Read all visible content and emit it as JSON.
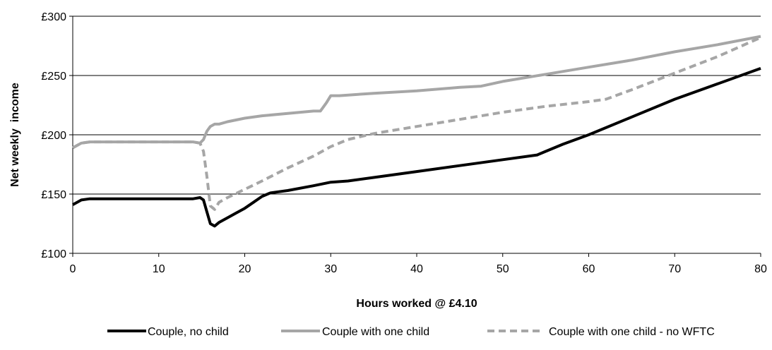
{
  "chart_data": {
    "type": "line",
    "title": "",
    "xlabel": "Hours worked @ £4.10",
    "ylabel": "Net weekly  income",
    "xlim": [
      0,
      80
    ],
    "ylim": [
      100,
      300
    ],
    "x_ticks": [
      0,
      10,
      20,
      30,
      40,
      50,
      60,
      70,
      80
    ],
    "x_tick_labels": [
      "0",
      "10",
      "20",
      "30",
      "40",
      "50",
      "60",
      "70",
      "80"
    ],
    "y_ticks": [
      100,
      150,
      200,
      250,
      300
    ],
    "y_tick_labels": [
      "£100",
      "£150",
      "£200",
      "£250",
      "£300"
    ],
    "grid": "horizontal",
    "legend_position": "bottom",
    "series": [
      {
        "name": "Couple, no child",
        "color": "#000000",
        "style": "solid",
        "points": [
          [
            0,
            141
          ],
          [
            0.5,
            143
          ],
          [
            1,
            145
          ],
          [
            2,
            146
          ],
          [
            5,
            146
          ],
          [
            10,
            146
          ],
          [
            14,
            146
          ],
          [
            14.8,
            147
          ],
          [
            15.2,
            145
          ],
          [
            15.6,
            135
          ],
          [
            16,
            125
          ],
          [
            16.5,
            123
          ],
          [
            17,
            126
          ],
          [
            18,
            130
          ],
          [
            19,
            134
          ],
          [
            20,
            138
          ],
          [
            21,
            143
          ],
          [
            22,
            148
          ],
          [
            23,
            151
          ],
          [
            25,
            153
          ],
          [
            28,
            157
          ],
          [
            30,
            160
          ],
          [
            32,
            161
          ],
          [
            35,
            164
          ],
          [
            40,
            169
          ],
          [
            45,
            174
          ],
          [
            50,
            179
          ],
          [
            54,
            183
          ],
          [
            55,
            186
          ],
          [
            57,
            192
          ],
          [
            60,
            200
          ],
          [
            65,
            215
          ],
          [
            70,
            230
          ],
          [
            75,
            243
          ],
          [
            80,
            256
          ]
        ]
      },
      {
        "name": "Couple with one child",
        "color": "#a6a6a6",
        "style": "solid",
        "points": [
          [
            0,
            189
          ],
          [
            0.5,
            191
          ],
          [
            1,
            193
          ],
          [
            2,
            194
          ],
          [
            5,
            194
          ],
          [
            10,
            194
          ],
          [
            14,
            194
          ],
          [
            14.8,
            193
          ],
          [
            15.2,
            196
          ],
          [
            15.6,
            203
          ],
          [
            16,
            207
          ],
          [
            16.5,
            209
          ],
          [
            17,
            209
          ],
          [
            18,
            211
          ],
          [
            20,
            214
          ],
          [
            22,
            216
          ],
          [
            25,
            218
          ],
          [
            28,
            220
          ],
          [
            28.8,
            220
          ],
          [
            29.5,
            227
          ],
          [
            30,
            233
          ],
          [
            31,
            233
          ],
          [
            35,
            235
          ],
          [
            40,
            237
          ],
          [
            45,
            240
          ],
          [
            47.5,
            241
          ],
          [
            50,
            245
          ],
          [
            55,
            251
          ],
          [
            60,
            257
          ],
          [
            65,
            263
          ],
          [
            70,
            270
          ],
          [
            75,
            276
          ],
          [
            80,
            283
          ]
        ]
      },
      {
        "name": "Couple with one child - no WFTC",
        "color": "#a6a6a6",
        "style": "dashed",
        "points": [
          [
            0,
            189
          ],
          [
            0.5,
            191
          ],
          [
            1,
            193
          ],
          [
            2,
            194
          ],
          [
            5,
            194
          ],
          [
            10,
            194
          ],
          [
            14,
            194
          ],
          [
            14.8,
            193
          ],
          [
            15.2,
            186
          ],
          [
            15.6,
            165
          ],
          [
            16,
            140
          ],
          [
            16.5,
            137
          ],
          [
            17,
            143
          ],
          [
            18,
            147
          ],
          [
            20,
            154
          ],
          [
            22,
            161
          ],
          [
            25,
            172
          ],
          [
            28,
            182
          ],
          [
            30,
            190
          ],
          [
            32,
            196
          ],
          [
            35,
            201
          ],
          [
            40,
            207
          ],
          [
            45,
            213
          ],
          [
            50,
            219
          ],
          [
            55,
            224
          ],
          [
            60,
            228
          ],
          [
            62,
            230
          ],
          [
            65,
            238
          ],
          [
            70,
            252
          ],
          [
            75,
            266
          ],
          [
            80,
            282
          ]
        ]
      }
    ]
  }
}
